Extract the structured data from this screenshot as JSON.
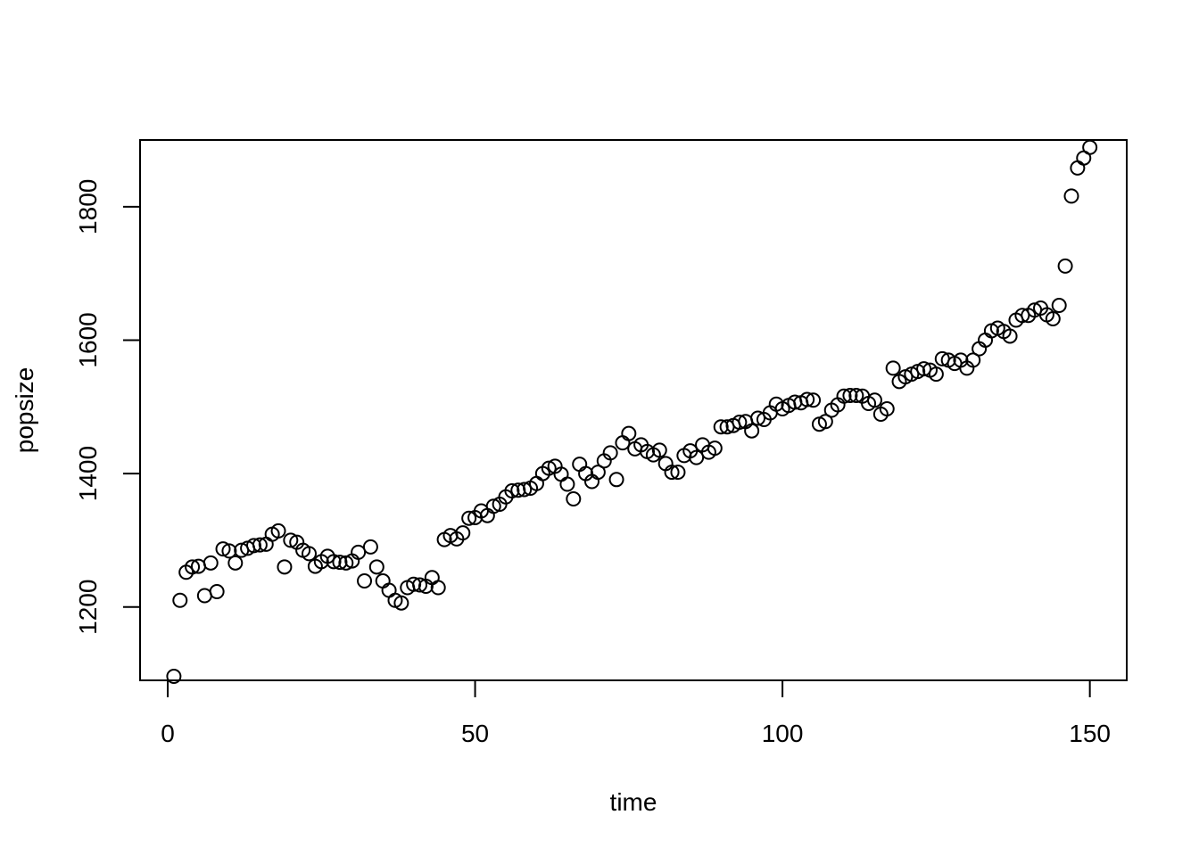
{
  "chart_data": {
    "type": "scatter",
    "title": "",
    "xlabel": "time",
    "ylabel": "popsize",
    "xlim": [
      -4.5,
      156
    ],
    "ylim": [
      1090,
      1900
    ],
    "x_ticks": [
      0,
      50,
      100,
      150
    ],
    "y_ticks": [
      1200,
      1400,
      1600,
      1800
    ],
    "x_tick_labels": [
      "0",
      "50",
      "100",
      "150"
    ],
    "y_tick_labels": [
      "1200",
      "1400",
      "1600",
      "1800"
    ],
    "grid": false,
    "marker": "open-circle",
    "series": [
      {
        "values": [
          1096,
          1210,
          1252,
          1260,
          1261,
          1217,
          1266,
          1223,
          1287,
          1284,
          1266,
          1285,
          1288,
          1292,
          1293,
          1294,
          1309,
          1314,
          1260,
          1300,
          1297,
          1285,
          1280,
          1261,
          1268,
          1276,
          1268,
          1267,
          1266,
          1269,
          1282,
          1239,
          1290,
          1260,
          1239,
          1225,
          1210,
          1206,
          1229,
          1234,
          1233,
          1231,
          1244,
          1229,
          1301,
          1307,
          1302,
          1311,
          1333,
          1334,
          1344,
          1337,
          1351,
          1354,
          1365,
          1374,
          1375,
          1376,
          1378,
          1385,
          1400,
          1408,
          1411,
          1399,
          1384,
          1362,
          1414,
          1400,
          1388,
          1402,
          1419,
          1431,
          1391,
          1446,
          1460,
          1437,
          1443,
          1433,
          1428,
          1435,
          1415,
          1402,
          1402,
          1427,
          1434,
          1424,
          1443,
          1432,
          1438,
          1470,
          1470,
          1472,
          1477,
          1478,
          1464,
          1483,
          1481,
          1491,
          1504,
          1497,
          1502,
          1507,
          1506,
          1511,
          1510,
          1474,
          1478,
          1495,
          1503,
          1516,
          1517,
          1517,
          1516,
          1505,
          1510,
          1489,
          1497,
          1558,
          1538,
          1545,
          1549,
          1553,
          1557,
          1555,
          1549,
          1572,
          1570,
          1565,
          1570,
          1558,
          1570,
          1587,
          1600,
          1614,
          1618,
          1613,
          1606,
          1630,
          1637,
          1637,
          1645,
          1648,
          1638,
          1632,
          1652,
          1711,
          1816,
          1858,
          1873,
          1889
        ]
      }
    ]
  }
}
